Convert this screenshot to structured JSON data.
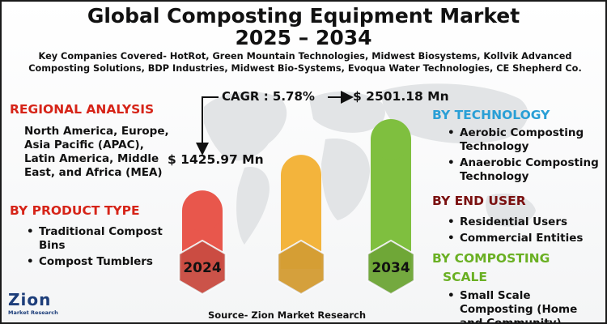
{
  "header": {
    "title_line1": "Global Composting Equipment Market",
    "title_line2": "2025 – 2034",
    "companies": "Key Companies Covered- HotRot, Green Mountain Technologies, Midwest Biosystems, Kollvik Advanced Composting Solutions, BDP Industries, Midwest Bio-Systems, Evoqua Water Technologies, CE Shepherd Co."
  },
  "regional": {
    "heading": "REGIONAL ANALYSIS",
    "text": "North America, Europe, Asia Pacific (APAC), Latin America, Middle East, and Africa (MEA)"
  },
  "product": {
    "heading": "BY PRODUCT TYPE",
    "items": [
      "Traditional Compost Bins",
      "Compost Tumblers"
    ]
  },
  "technology": {
    "heading": "BY TECHNOLOGY",
    "items": [
      "Aerobic Composting Technology",
      "Anaerobic Composting Technology"
    ]
  },
  "end_user": {
    "heading": "BY END USER",
    "items": [
      "Residential Users",
      "Commercial Entities"
    ]
  },
  "scale": {
    "heading_line1": "BY COMPOSTING",
    "heading_line2": "SCALE",
    "items": [
      "Small Scale Composting (Home and Community)"
    ]
  },
  "source": "Source- Zion Market Research",
  "logo": {
    "name": "Zion",
    "tagline": "Market Research"
  },
  "colors": {
    "bar_2024": "#e8574c",
    "bar_mid": "#f3b43c",
    "bar_2034": "#7fbf3f",
    "accent_red": "#d62418",
    "accent_blue": "#2a9fd6"
  },
  "chart_data": {
    "type": "bar",
    "categories": [
      "2024",
      "",
      "2034"
    ],
    "values": [
      1425.97,
      null,
      2501.18
    ],
    "value_labels": [
      "$ 1425.97 Mn",
      "",
      "$ 2501.18 Mn"
    ],
    "cagr_label": "CAGR : 5.78%",
    "units": "Mn"
  }
}
